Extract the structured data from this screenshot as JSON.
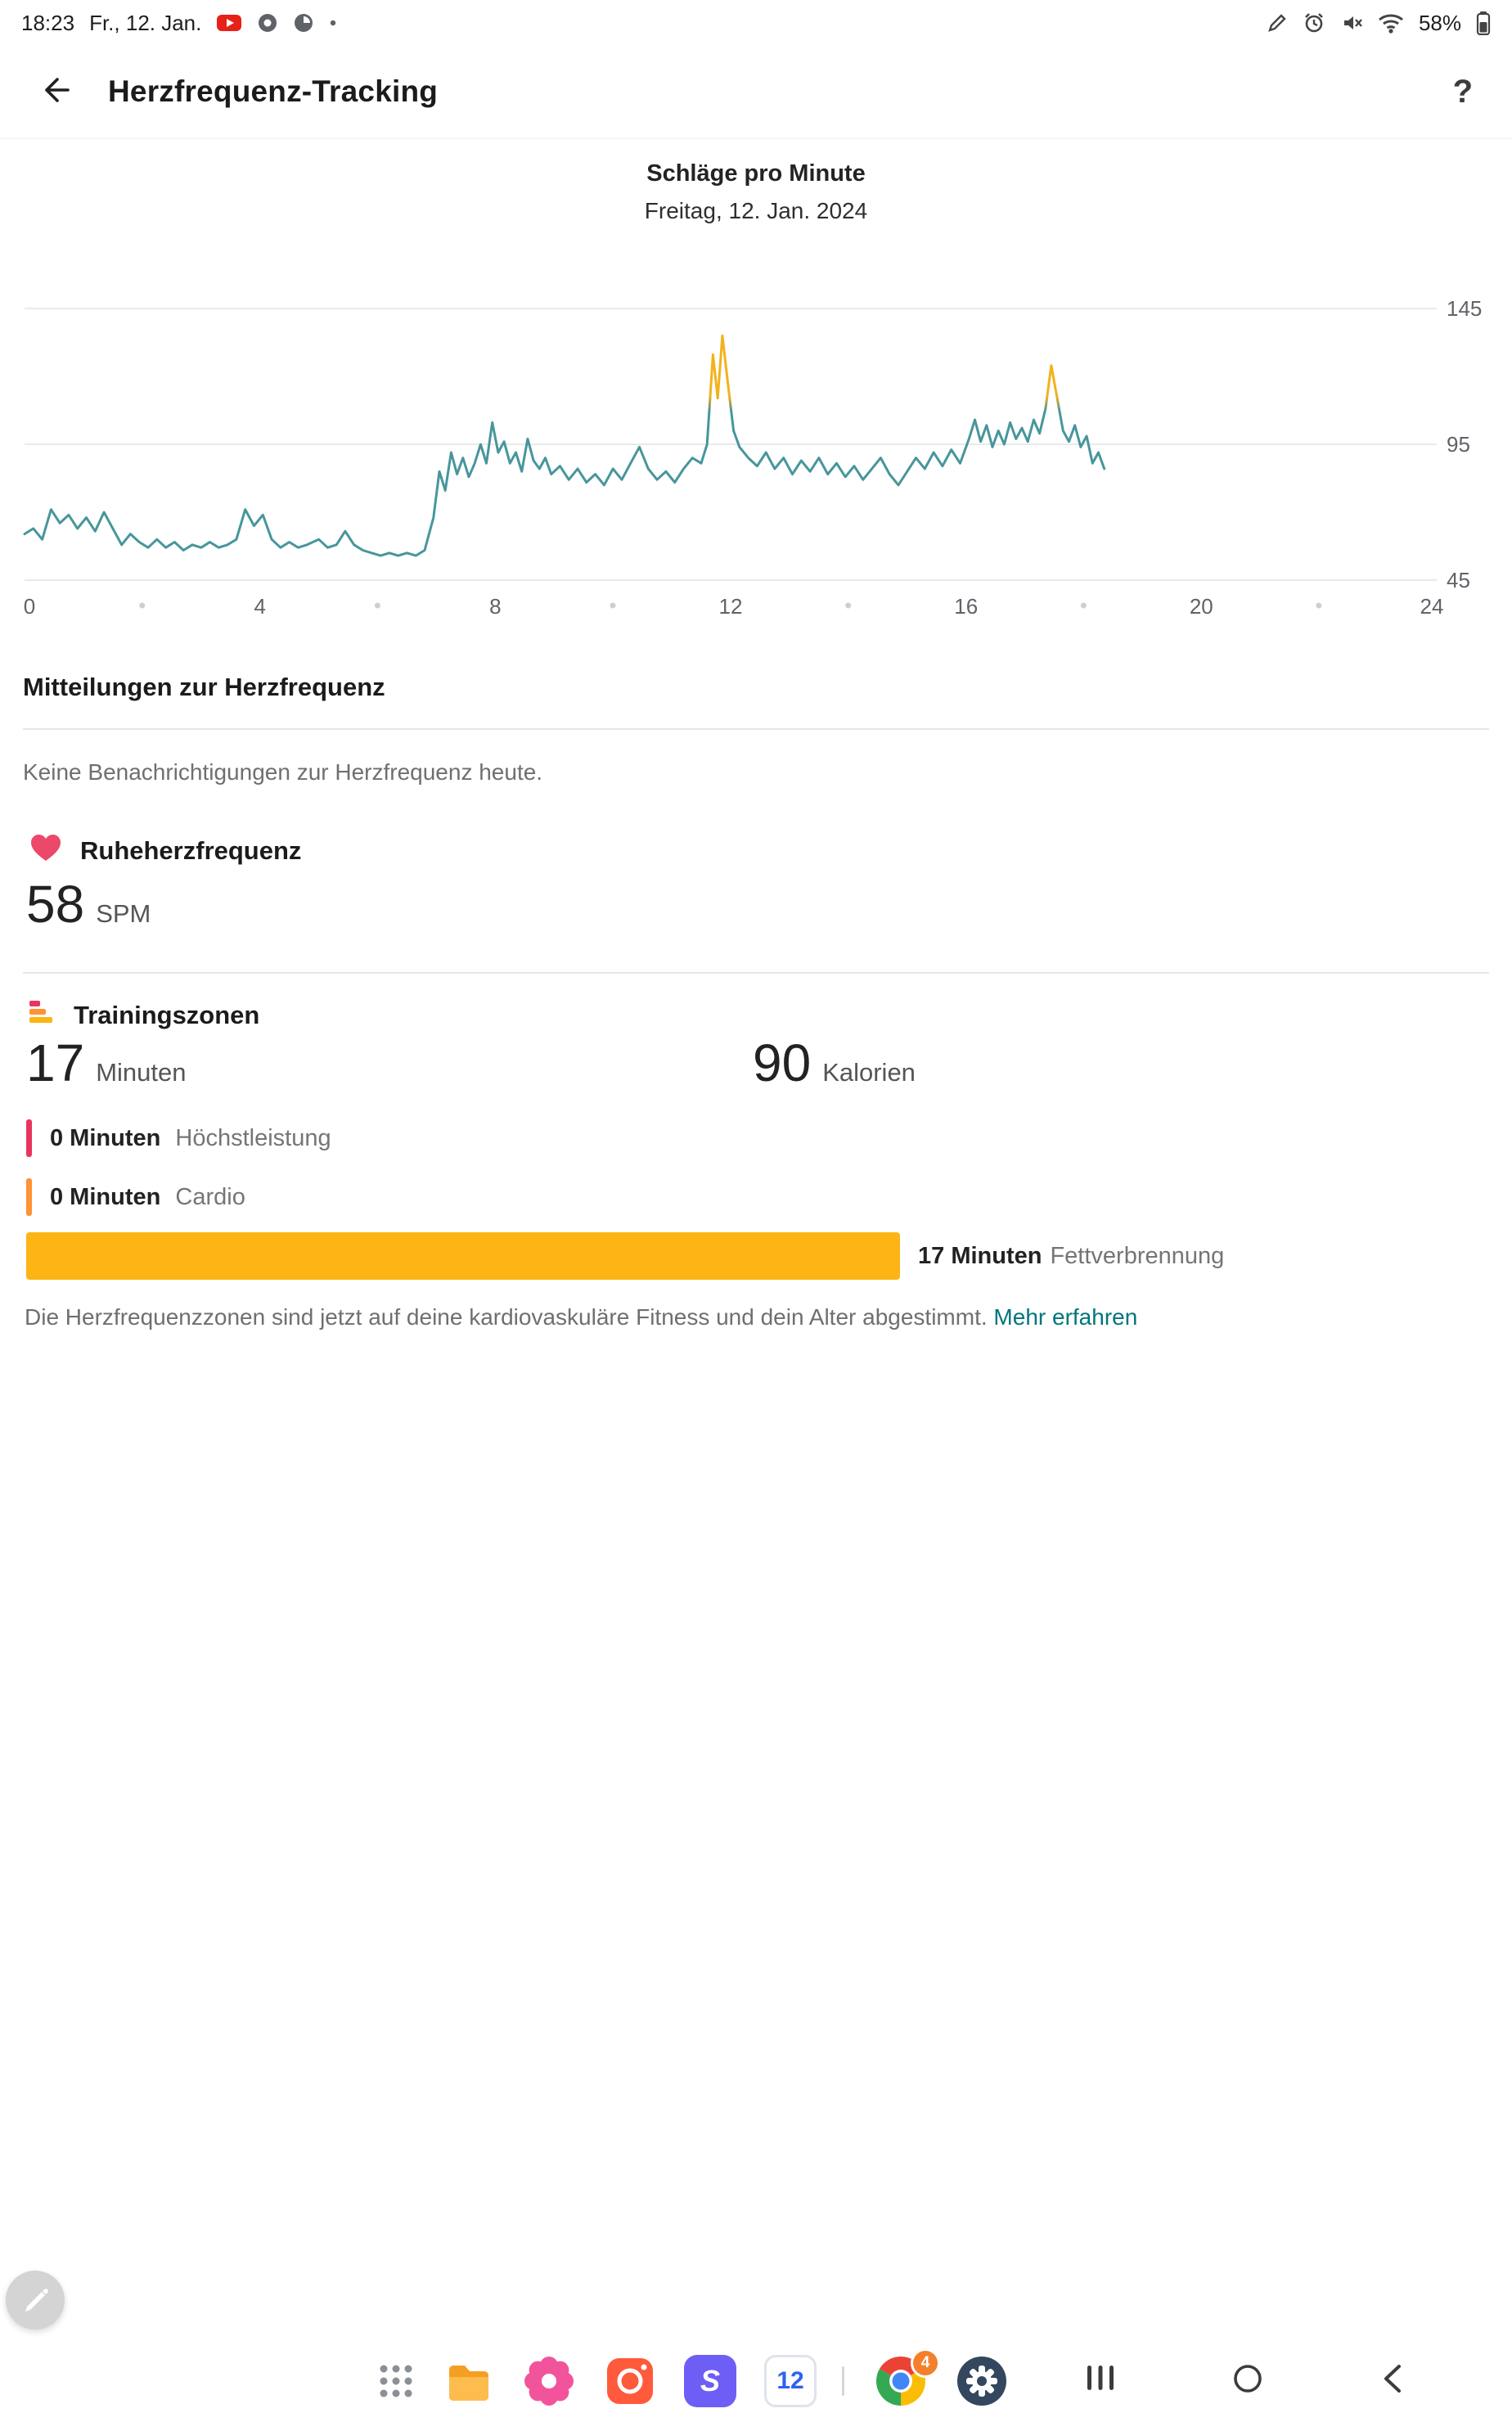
{
  "status": {
    "time": "18:23",
    "date": "Fr., 12. Jan.",
    "battery": "58%"
  },
  "header": {
    "title": "Herzfrequenz-Tracking",
    "help": "?"
  },
  "chart_data": {
    "type": "line",
    "title": "Schläge pro Minute",
    "subtitle": "Freitag, 12. Jan. 2024",
    "ylabel": "SPM",
    "xlim": [
      0,
      24
    ],
    "ylim": [
      45,
      145
    ],
    "y_tick_labels": [
      "145",
      "95",
      "45"
    ],
    "x_tick_labels": [
      "0",
      "4",
      "8",
      "12",
      "16",
      "20",
      "24"
    ],
    "grid": true,
    "line_color": "#47969b",
    "peak_color": "#f2b21c",
    "zone_threshold_bpm": 110,
    "points": [
      [
        0,
        62
      ],
      [
        0.15,
        64
      ],
      [
        0.3,
        60
      ],
      [
        0.45,
        71
      ],
      [
        0.6,
        66
      ],
      [
        0.75,
        69
      ],
      [
        0.9,
        64
      ],
      [
        1.05,
        68
      ],
      [
        1.2,
        63
      ],
      [
        1.35,
        70
      ],
      [
        1.5,
        64
      ],
      [
        1.65,
        58
      ],
      [
        1.8,
        62
      ],
      [
        1.95,
        59
      ],
      [
        2.1,
        57
      ],
      [
        2.25,
        60
      ],
      [
        2.4,
        57
      ],
      [
        2.55,
        59
      ],
      [
        2.7,
        56
      ],
      [
        2.85,
        58
      ],
      [
        3,
        57
      ],
      [
        3.15,
        59
      ],
      [
        3.3,
        57
      ],
      [
        3.45,
        58
      ],
      [
        3.6,
        60
      ],
      [
        3.75,
        71
      ],
      [
        3.9,
        65
      ],
      [
        4.05,
        69
      ],
      [
        4.2,
        60
      ],
      [
        4.35,
        57
      ],
      [
        4.5,
        59
      ],
      [
        4.65,
        57
      ],
      [
        4.8,
        58
      ],
      [
        5,
        60
      ],
      [
        5.15,
        57
      ],
      [
        5.3,
        58
      ],
      [
        5.45,
        63
      ],
      [
        5.6,
        58
      ],
      [
        5.75,
        56
      ],
      [
        5.9,
        55
      ],
      [
        6.05,
        54
      ],
      [
        6.2,
        55
      ],
      [
        6.35,
        54
      ],
      [
        6.5,
        55
      ],
      [
        6.65,
        54
      ],
      [
        6.8,
        56
      ],
      [
        6.95,
        68
      ],
      [
        7.05,
        85
      ],
      [
        7.15,
        78
      ],
      [
        7.25,
        92
      ],
      [
        7.35,
        84
      ],
      [
        7.45,
        90
      ],
      [
        7.55,
        83
      ],
      [
        7.65,
        88
      ],
      [
        7.75,
        95
      ],
      [
        7.85,
        88
      ],
      [
        7.95,
        103
      ],
      [
        8.05,
        92
      ],
      [
        8.15,
        96
      ],
      [
        8.25,
        88
      ],
      [
        8.35,
        92
      ],
      [
        8.45,
        85
      ],
      [
        8.55,
        97
      ],
      [
        8.65,
        89
      ],
      [
        8.75,
        86
      ],
      [
        8.85,
        90
      ],
      [
        8.95,
        84
      ],
      [
        9.1,
        87
      ],
      [
        9.25,
        82
      ],
      [
        9.4,
        86
      ],
      [
        9.55,
        81
      ],
      [
        9.7,
        84
      ],
      [
        9.85,
        80
      ],
      [
        10,
        86
      ],
      [
        10.15,
        82
      ],
      [
        10.3,
        88
      ],
      [
        10.45,
        94
      ],
      [
        10.6,
        86
      ],
      [
        10.75,
        82
      ],
      [
        10.9,
        85
      ],
      [
        11.05,
        81
      ],
      [
        11.2,
        86
      ],
      [
        11.35,
        90
      ],
      [
        11.5,
        88
      ],
      [
        11.6,
        95
      ],
      [
        11.7,
        128
      ],
      [
        11.78,
        112
      ],
      [
        11.86,
        135
      ],
      [
        11.95,
        118
      ],
      [
        12.05,
        100
      ],
      [
        12.15,
        94
      ],
      [
        12.3,
        90
      ],
      [
        12.45,
        87
      ],
      [
        12.6,
        92
      ],
      [
        12.75,
        86
      ],
      [
        12.9,
        90
      ],
      [
        13.05,
        84
      ],
      [
        13.2,
        89
      ],
      [
        13.35,
        85
      ],
      [
        13.5,
        90
      ],
      [
        13.65,
        84
      ],
      [
        13.8,
        88
      ],
      [
        13.95,
        83
      ],
      [
        14.1,
        87
      ],
      [
        14.25,
        82
      ],
      [
        14.4,
        86
      ],
      [
        14.55,
        90
      ],
      [
        14.7,
        84
      ],
      [
        14.85,
        80
      ],
      [
        15,
        85
      ],
      [
        15.15,
        90
      ],
      [
        15.3,
        86
      ],
      [
        15.45,
        92
      ],
      [
        15.6,
        87
      ],
      [
        15.75,
        93
      ],
      [
        15.9,
        88
      ],
      [
        16.05,
        97
      ],
      [
        16.15,
        104
      ],
      [
        16.25,
        96
      ],
      [
        16.35,
        102
      ],
      [
        16.45,
        94
      ],
      [
        16.55,
        100
      ],
      [
        16.65,
        95
      ],
      [
        16.75,
        103
      ],
      [
        16.85,
        97
      ],
      [
        16.95,
        101
      ],
      [
        17.05,
        96
      ],
      [
        17.15,
        104
      ],
      [
        17.25,
        99
      ],
      [
        17.35,
        108
      ],
      [
        17.45,
        124
      ],
      [
        17.55,
        112
      ],
      [
        17.65,
        100
      ],
      [
        17.75,
        96
      ],
      [
        17.85,
        102
      ],
      [
        17.95,
        94
      ],
      [
        18.05,
        98
      ],
      [
        18.15,
        88
      ],
      [
        18.25,
        92
      ],
      [
        18.35,
        86
      ]
    ]
  },
  "notifications": {
    "title": "Mitteilungen zur Herzfrequenz",
    "empty": "Keine Benachrichtigungen zur Herzfrequenz heute."
  },
  "resting": {
    "label": "Ruheherzfrequenz",
    "value": "58",
    "unit": "SPM",
    "heart_color": "#ec4869"
  },
  "zones": {
    "label": "Trainingszonen",
    "minutes_value": "17",
    "minutes_unit": "Minuten",
    "calories_value": "90",
    "calories_unit": "Kalorien",
    "rows": [
      {
        "value": "0 Minuten",
        "name": "Höchstleistung",
        "color": "#e8355c"
      },
      {
        "value": "0 Minuten",
        "name": "Cardio",
        "color": "#ff9233"
      },
      {
        "value": "17 Minuten",
        "name": "Fettverbrennung",
        "color": "#fcb515"
      }
    ],
    "footnote": "Die Herzfrequenzzonen sind jetzt auf deine kardiovaskuläre Fitness und dein Alter abgestimmt.",
    "footnote_link": "Mehr erfahren"
  },
  "nav": {
    "calendar_day": "12",
    "chrome_badge": "4"
  }
}
